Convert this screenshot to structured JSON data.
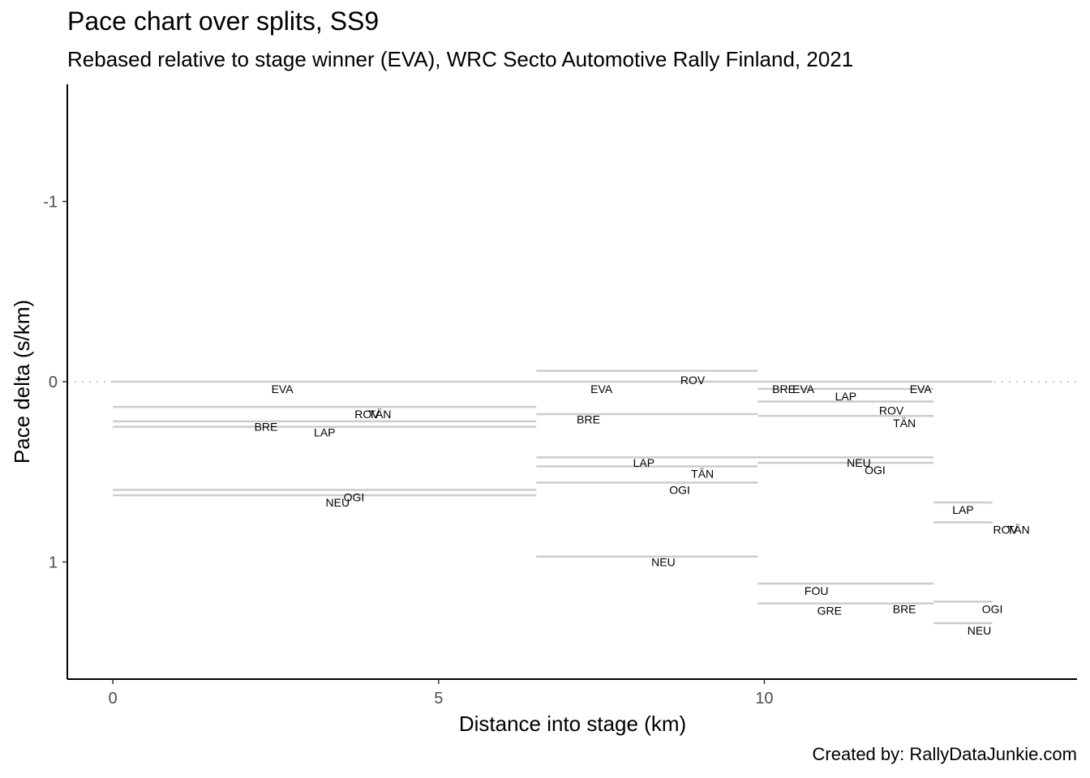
{
  "chart_data": {
    "type": "line",
    "title": "Pace chart over splits, SS9",
    "subtitle": "Rebased relative to stage winner (EVA), WRC Secto Automotive Rally Finland, 2021",
    "caption": "Created by: RallyDataJunkie.com",
    "xlabel": "Distance into stage (km)",
    "ylabel": "Pace delta (s/km)",
    "xlim": [
      -0.7,
      14.8
    ],
    "ylim": [
      -1.65,
      1.65
    ],
    "y_reversed": true,
    "x_ticks": [
      0,
      5,
      10
    ],
    "x_tick_labels": [
      "0",
      "5",
      "10"
    ],
    "y_ticks": [
      -1,
      0,
      1
    ],
    "y_tick_labels": [
      "-1",
      "0",
      "1"
    ],
    "reference_line": {
      "y": 0,
      "style": "dotted"
    },
    "grid": false,
    "segments": [
      {
        "start": 0,
        "end": 6.5,
        "y": 0
      },
      {
        "start": 0,
        "end": 6.5,
        "y": 0.14
      },
      {
        "start": 0,
        "end": 6.5,
        "y": 0.22
      },
      {
        "start": 0,
        "end": 6.5,
        "y": 0.25
      },
      {
        "start": 0,
        "end": 6.5,
        "y": 0.6
      },
      {
        "start": 0,
        "end": 6.5,
        "y": 0.63
      },
      {
        "start": 6.5,
        "end": 9.9,
        "y": -0.06
      },
      {
        "start": 6.5,
        "end": 9.9,
        "y": 0
      },
      {
        "start": 6.5,
        "end": 9.9,
        "y": 0.18
      },
      {
        "start": 6.5,
        "end": 9.9,
        "y": 0.42
      },
      {
        "start": 6.5,
        "end": 9.9,
        "y": 0.47
      },
      {
        "start": 6.5,
        "end": 9.9,
        "y": 0.56
      },
      {
        "start": 6.5,
        "end": 9.9,
        "y": 0.97
      },
      {
        "start": 9.9,
        "end": 12.6,
        "y": 0
      },
      {
        "start": 9.9,
        "end": 12.6,
        "y": 0.04
      },
      {
        "start": 9.9,
        "end": 12.6,
        "y": 0.11
      },
      {
        "start": 9.9,
        "end": 12.6,
        "y": 0.19
      },
      {
        "start": 9.9,
        "end": 12.6,
        "y": 0.42
      },
      {
        "start": 9.9,
        "end": 12.6,
        "y": 0.45
      },
      {
        "start": 9.9,
        "end": 12.6,
        "y": 1.12
      },
      {
        "start": 9.9,
        "end": 12.6,
        "y": 1.23
      },
      {
        "start": 12.6,
        "end": 13.5,
        "y": 0
      },
      {
        "start": 12.6,
        "end": 13.5,
        "y": 0.67
      },
      {
        "start": 12.6,
        "end": 13.5,
        "y": 0.78
      },
      {
        "start": 12.6,
        "end": 13.5,
        "y": 1.22
      },
      {
        "start": 12.6,
        "end": 13.5,
        "y": 1.34
      }
    ],
    "labels": [
      {
        "text": "EVA",
        "x": 2.6,
        "y": 0.04
      },
      {
        "text": "ROV",
        "x": 3.9,
        "y": 0.18
      },
      {
        "text": "TÄN",
        "x": 4.1,
        "y": 0.18
      },
      {
        "text": "BRE",
        "x": 2.35,
        "y": 0.25
      },
      {
        "text": "LAP",
        "x": 3.25,
        "y": 0.28
      },
      {
        "text": "OGI",
        "x": 3.7,
        "y": 0.64
      },
      {
        "text": "NEU",
        "x": 3.45,
        "y": 0.67
      },
      {
        "text": "ROV",
        "x": 8.9,
        "y": -0.01
      },
      {
        "text": "EVA",
        "x": 7.5,
        "y": 0.04
      },
      {
        "text": "BRE",
        "x": 7.3,
        "y": 0.21
      },
      {
        "text": "LAP",
        "x": 8.15,
        "y": 0.45
      },
      {
        "text": "TÄN",
        "x": 9.05,
        "y": 0.51
      },
      {
        "text": "OGI",
        "x": 8.7,
        "y": 0.6
      },
      {
        "text": "NEU",
        "x": 8.45,
        "y": 1.0
      },
      {
        "text": "BRE",
        "x": 10.3,
        "y": 0.04
      },
      {
        "text": "EVA",
        "x": 10.6,
        "y": 0.04
      },
      {
        "text": "LAP",
        "x": 11.25,
        "y": 0.08
      },
      {
        "text": "EVA",
        "x": 12.4,
        "y": 0.04
      },
      {
        "text": "ROV",
        "x": 11.95,
        "y": 0.16
      },
      {
        "text": "TÄN",
        "x": 12.15,
        "y": 0.23
      },
      {
        "text": "NEU",
        "x": 11.45,
        "y": 0.45
      },
      {
        "text": "OGI",
        "x": 11.7,
        "y": 0.49
      },
      {
        "text": "FOU",
        "x": 10.8,
        "y": 1.16
      },
      {
        "text": "GRE",
        "x": 11.0,
        "y": 1.27
      },
      {
        "text": "BRE",
        "x": 12.15,
        "y": 1.26
      },
      {
        "text": "LAP",
        "x": 13.05,
        "y": 0.71
      },
      {
        "text": "ROV",
        "x": 13.7,
        "y": 0.82
      },
      {
        "text": "TÄN",
        "x": 13.9,
        "y": 0.82
      },
      {
        "text": "OGI",
        "x": 13.5,
        "y": 1.26
      },
      {
        "text": "NEU",
        "x": 13.3,
        "y": 1.38
      }
    ]
  }
}
